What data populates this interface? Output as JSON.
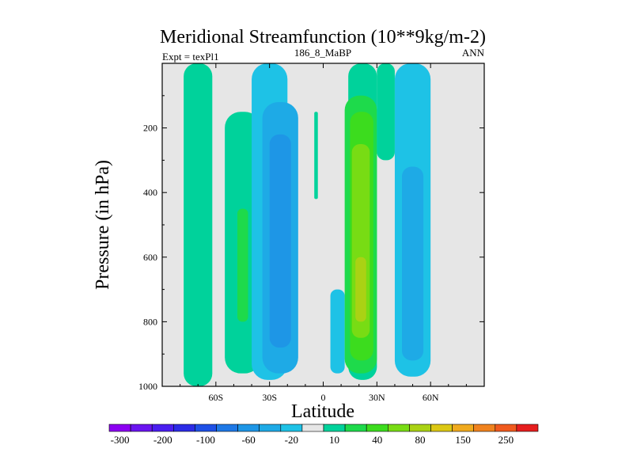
{
  "chart_data": {
    "type": "heatmap",
    "title": "Meridional Streamfunction (10**9kg/m-2)",
    "subtitle_left": "Expt = texPl1",
    "subtitle_center": "186_8_MaBP",
    "subtitle_right": "ANN",
    "xlabel": "Latitude",
    "ylabel": "Pressure (in hPa)",
    "xlim": [
      -90,
      90
    ],
    "ylim": [
      1000,
      0
    ],
    "y_reversed": true,
    "x_ticks": [
      {
        "value": -60,
        "label": "60S"
      },
      {
        "value": -30,
        "label": "30S"
      },
      {
        "value": 0,
        "label": "0"
      },
      {
        "value": 30,
        "label": "30N"
      },
      {
        "value": 60,
        "label": "60N"
      }
    ],
    "y_ticks": [
      {
        "value": 200,
        "label": "200"
      },
      {
        "value": 400,
        "label": "400"
      },
      {
        "value": 600,
        "label": "600"
      },
      {
        "value": 800,
        "label": "800"
      },
      {
        "value": 1000,
        "label": "1000"
      }
    ],
    "colorbar": {
      "levels": [
        -300,
        -250,
        -200,
        -150,
        -100,
        -80,
        -60,
        -40,
        -20,
        -10,
        10,
        20,
        40,
        60,
        80,
        100,
        150,
        200,
        250,
        300
      ],
      "labeled": [
        -300,
        -200,
        -100,
        -60,
        -20,
        10,
        40,
        80,
        150,
        250
      ],
      "colors": [
        "#8c00f2",
        "#6a14f0",
        "#4a1ef0",
        "#2b2be6",
        "#1e50e6",
        "#1e78e6",
        "#1e96e6",
        "#1eaae6",
        "#1ec2e6",
        "#e6e6e6",
        "#00d29b",
        "#1eda4b",
        "#3cdc1e",
        "#78dc14",
        "#aad214",
        "#dcc814",
        "#f0aa1e",
        "#f0821e",
        "#f05a1e",
        "#e61e1e"
      ]
    },
    "cells": [
      {
        "lat": [
          -78,
          -62
        ],
        "p": [
          0,
          1000
        ],
        "value": 15
      },
      {
        "lat": [
          -55,
          -35
        ],
        "p": [
          150,
          960
        ],
        "value": 15
      },
      {
        "lat": [
          -48,
          -42
        ],
        "p": [
          450,
          800
        ],
        "value": 25
      },
      {
        "lat": [
          -40,
          -20
        ],
        "p": [
          0,
          980
        ],
        "value": -15
      },
      {
        "lat": [
          -34,
          -14
        ],
        "p": [
          120,
          960
        ],
        "value": -30
      },
      {
        "lat": [
          -30,
          -18
        ],
        "p": [
          220,
          880
        ],
        "value": -50
      },
      {
        "lat": [
          -5,
          -3
        ],
        "p": [
          150,
          420
        ],
        "value": 15
      },
      {
        "lat": [
          4,
          12
        ],
        "p": [
          700,
          960
        ],
        "value": -15
      },
      {
        "lat": [
          14,
          30
        ],
        "p": [
          0,
          980
        ],
        "value": 15
      },
      {
        "lat": [
          12,
          30
        ],
        "p": [
          100,
          960
        ],
        "value": 25
      },
      {
        "lat": [
          15,
          28
        ],
        "p": [
          150,
          920
        ],
        "value": 45
      },
      {
        "lat": [
          16,
          26
        ],
        "p": [
          250,
          850
        ],
        "value": 65
      },
      {
        "lat": [
          18,
          24
        ],
        "p": [
          600,
          800
        ],
        "value": 90
      },
      {
        "lat": [
          30,
          40
        ],
        "p": [
          0,
          300
        ],
        "value": 15
      },
      {
        "lat": [
          40,
          60
        ],
        "p": [
          0,
          970
        ],
        "value": -15
      },
      {
        "lat": [
          44,
          56
        ],
        "p": [
          320,
          920
        ],
        "value": -25
      }
    ]
  }
}
